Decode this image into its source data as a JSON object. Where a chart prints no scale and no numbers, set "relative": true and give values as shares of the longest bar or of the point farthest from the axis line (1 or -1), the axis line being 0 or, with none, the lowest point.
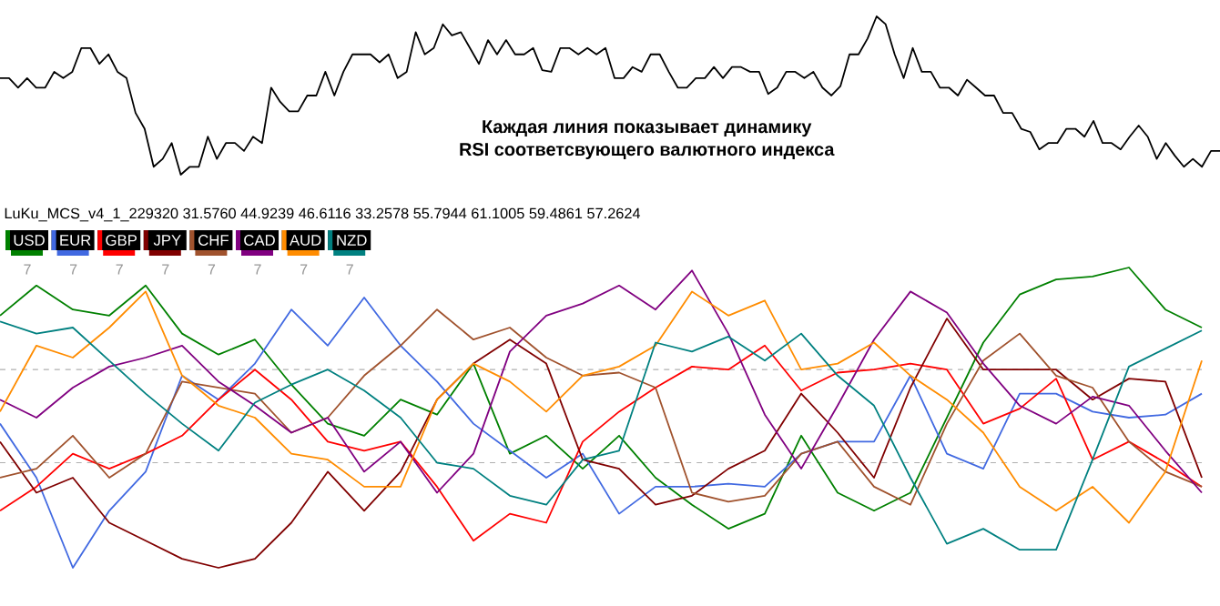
{
  "chart_data": [
    {
      "type": "line",
      "relative": true,
      "color": "#000000",
      "annotations": [
        "Каждая линия показывает динамику",
        "RSI соответсвующего валютного индекса"
      ],
      "categories": [
        null,
        null,
        null,
        null,
        null,
        null,
        null,
        null,
        null,
        null,
        null,
        null,
        null,
        null,
        null,
        null,
        null,
        null,
        null,
        null,
        null,
        null,
        null,
        null,
        null,
        null,
        null,
        null,
        null,
        null,
        null,
        null,
        null,
        null,
        null,
        null,
        null,
        null,
        null,
        null,
        null,
        null,
        null,
        null,
        null,
        null,
        null,
        null,
        null,
        null,
        null,
        null,
        null,
        null,
        null,
        null,
        null,
        null,
        null,
        null,
        null,
        null,
        null,
        null,
        null,
        null,
        null,
        null,
        null,
        null,
        null,
        null,
        null,
        null,
        null,
        null,
        null,
        null,
        null,
        null,
        null,
        null,
        null,
        null,
        null,
        null,
        null,
        null,
        null,
        null,
        null,
        null,
        null,
        null,
        null,
        null,
        null,
        null,
        null,
        null,
        null,
        null,
        null,
        null,
        null,
        null,
        null,
        null,
        null,
        null,
        null,
        null,
        null,
        null,
        null,
        null,
        null,
        null,
        null,
        null,
        null,
        null,
        null,
        null,
        null,
        null,
        null,
        null,
        null,
        null,
        null,
        null,
        null,
        null,
        null,
        null
      ],
      "values": [
        0.61,
        0.61,
        0.55,
        0.61,
        0.55,
        0.55,
        0.65,
        0.61,
        0.65,
        0.8,
        0.8,
        0.7,
        0.76,
        0.65,
        0.61,
        0.39,
        0.29,
        0.05,
        0.1,
        0.2,
        0,
        0.05,
        0.05,
        0.24,
        0.1,
        0.2,
        0.2,
        0.15,
        0.24,
        0.2,
        0.55,
        0.46,
        0.4,
        0.4,
        0.5,
        0.5,
        0.65,
        0.5,
        0.65,
        0.76,
        0.76,
        0.76,
        0.71,
        0.76,
        0.61,
        0.65,
        0.9,
        0.76,
        0.8,
        0.95,
        0.88,
        0.9,
        0.8,
        0.7,
        0.85,
        0.76,
        0.85,
        0.76,
        0.76,
        0.8,
        0.66,
        0.65,
        0.8,
        0.8,
        0.76,
        0.8,
        0.76,
        0.8,
        0.61,
        0.61,
        0.68,
        0.65,
        0.76,
        0.76,
        0.65,
        0.55,
        0.55,
        0.61,
        0.61,
        0.68,
        0.61,
        0.68,
        0.68,
        0.65,
        0.65,
        0.51,
        0.55,
        0.65,
        0.65,
        0.61,
        0.65,
        0.55,
        0.5,
        0.56,
        0.76,
        0.76,
        0.86,
        1,
        0.95,
        0.76,
        0.61,
        0.8,
        0.65,
        0.65,
        0.55,
        0.55,
        0.5,
        0.6,
        0.55,
        0.5,
        0.5,
        0.39,
        0.39,
        0.29,
        0.27,
        0.16,
        0.2,
        0.2,
        0.29,
        0.29,
        0.24,
        0.34,
        0.2,
        0.2,
        0.16,
        0.24,
        0.31,
        0.24,
        0.1,
        0.2,
        0.12,
        0.05,
        0.1,
        0.05,
        0.15,
        0.15
      ]
    },
    {
      "type": "line",
      "relative": true,
      "legend": "top left",
      "title": "LuKu_MCS_v4_1_229320 31.5760 44.9239 46.6116 33.2578 55.7944 61.1005 59.4861 57.2624",
      "annotations": [
        "7",
        "7",
        "7",
        "7",
        "7",
        "7",
        "7",
        "7"
      ],
      "ref_lines": [
        {
          "axis": "y",
          "value": 0.66,
          "color": "#b0b0b0",
          "line_style": "dashed"
        },
        {
          "axis": "y",
          "value": 0.35,
          "color": "#b0b0b0",
          "line_style": "dashed"
        }
      ],
      "categories": [
        null,
        null,
        null,
        null,
        null,
        null,
        null,
        null,
        null,
        null,
        null,
        null,
        null,
        null,
        null,
        null,
        null,
        null,
        null,
        null,
        null,
        null,
        null,
        null,
        null,
        null,
        null,
        null,
        null,
        null,
        null,
        null,
        null,
        null
      ],
      "series": [
        {
          "name": "USD",
          "color": "#008000",
          "values": [
            0.84,
            0.94,
            0.86,
            0.84,
            0.94,
            0.78,
            0.71,
            0.76,
            0.61,
            0.48,
            0.44,
            0.56,
            0.51,
            0.68,
            0.38,
            0.44,
            0.33,
            0.44,
            0.3,
            0.21,
            0.13,
            0.18,
            0.44,
            0.25,
            0.19,
            0.25,
            0.5,
            0.75,
            0.91,
            0.96,
            0.97,
            1,
            0.86,
            0.8
          ]
        },
        {
          "name": "EUR",
          "color": "#4169e1",
          "values": [
            0.48,
            0.3,
            0,
            0.19,
            0.32,
            0.64,
            0.56,
            0.68,
            0.86,
            0.74,
            0.9,
            0.74,
            0.62,
            0.48,
            0.39,
            0.3,
            0.38,
            0.18,
            0.27,
            0.27,
            0.28,
            0.27,
            0.38,
            0.42,
            0.42,
            0.64,
            0.38,
            0.33,
            0.58,
            0.58,
            0.52,
            0.5,
            0.51,
            0.58
          ]
        },
        {
          "name": "GBP",
          "color": "#ff0000",
          "values": [
            0.19,
            0.27,
            0.38,
            0.33,
            0.38,
            0.44,
            0.56,
            0.66,
            0.56,
            0.42,
            0.39,
            0.42,
            0.27,
            0.09,
            0.18,
            0.15,
            0.42,
            0.52,
            0.6,
            0.67,
            0.66,
            0.74,
            0.59,
            0.65,
            0.66,
            0.68,
            0.66,
            0.48,
            0.53,
            0.63,
            0.36,
            0.42,
            0.35,
            0.27
          ]
        },
        {
          "name": "JPY",
          "color": "#800000",
          "values": [
            0.42,
            0.25,
            0.3,
            0.15,
            0.09,
            0.03,
            0,
            0.03,
            0.15,
            0.32,
            0.19,
            0.32,
            0.56,
            0.68,
            0.76,
            0.68,
            0.36,
            0.33,
            0.21,
            0.24,
            0.33,
            0.39,
            0.58,
            0.45,
            0.3,
            0.6,
            0.83,
            0.66,
            0.66,
            0.66,
            0.56,
            0.63,
            0.62,
            0.3
          ]
        },
        {
          "name": "CHF",
          "color": "#a0522d",
          "values": [
            0.3,
            0.33,
            0.44,
            0.3,
            0.38,
            0.62,
            0.6,
            0.58,
            0.45,
            0.5,
            0.64,
            0.74,
            0.86,
            0.76,
            0.8,
            0.7,
            0.64,
            0.65,
            0.6,
            0.25,
            0.22,
            0.24,
            0.38,
            0.42,
            0.27,
            0.21,
            0.48,
            0.69,
            0.78,
            0.64,
            0.6,
            0.42,
            0.32,
            0.27
          ]
        },
        {
          "name": "CAD",
          "color": "#800080",
          "values": [
            0.56,
            0.5,
            0.6,
            0.67,
            0.7,
            0.74,
            0.62,
            0.54,
            0.45,
            0.5,
            0.32,
            0.42,
            0.25,
            0.38,
            0.72,
            0.84,
            0.88,
            0.94,
            0.86,
            0.99,
            0.78,
            0.51,
            0.33,
            0.54,
            0.76,
            0.92,
            0.85,
            0.68,
            0.54,
            0.48,
            0.57,
            0.54,
            0.39,
            0.25
          ]
        },
        {
          "name": "AUD",
          "color": "#ff8c00",
          "values": [
            0.52,
            0.74,
            0.7,
            0.8,
            0.92,
            0.64,
            0.54,
            0.5,
            0.38,
            0.36,
            0.27,
            0.27,
            0.56,
            0.68,
            0.62,
            0.52,
            0.64,
            0.67,
            0.74,
            0.92,
            0.84,
            0.89,
            0.66,
            0.68,
            0.75,
            0.64,
            0.56,
            0.45,
            0.27,
            0.19,
            0.27,
            0.15,
            0.32,
            0.69
          ]
        },
        {
          "name": "NZD",
          "color": "#008080",
          "values": [
            0.82,
            0.78,
            0.8,
            0.69,
            0.58,
            0.48,
            0.39,
            0.55,
            0.61,
            0.66,
            0.59,
            0.5,
            0.35,
            0.33,
            0.24,
            0.21,
            0.36,
            0.39,
            0.75,
            0.72,
            0.77,
            0.69,
            0.78,
            0.64,
            0.54,
            0.3,
            0.08,
            0.13,
            0.06,
            0.06,
            0.36,
            0.67,
            0.73,
            0.79
          ]
        }
      ]
    }
  ]
}
